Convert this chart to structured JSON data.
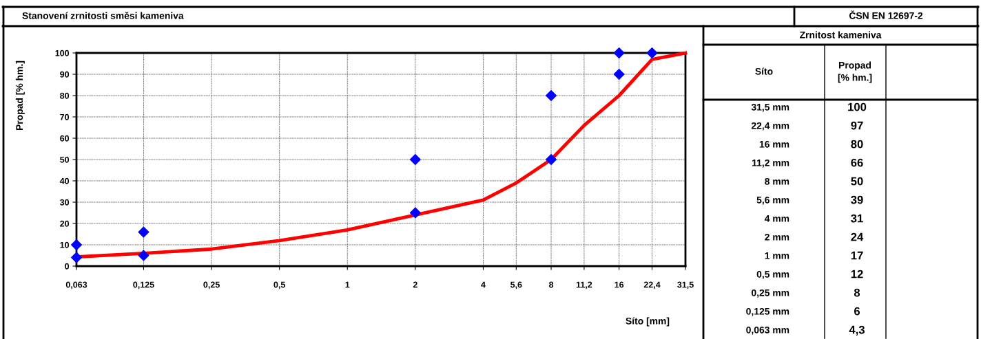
{
  "chart_data": {
    "type": "line",
    "title": "Stanovení zrnitosti směsi kameniva",
    "xlabel": "Síto [mm]",
    "ylabel": "Propad [% hm.]",
    "annotations": [
      "ČSN EN 12697-2",
      "Zrnitost kameniva",
      "Síto",
      "Propad [% hm.]",
      "31,5 mm",
      "22,4 mm",
      "16 mm",
      "11,2 mm",
      "8 mm",
      "5,6 mm",
      "4 mm",
      "2 mm",
      "1 mm",
      "0,5 mm",
      "0,25 mm",
      "0,125 mm",
      "0,063 mm",
      "100",
      "97",
      "80",
      "66",
      "50",
      "39",
      "31",
      "24",
      "17",
      "12",
      "8",
      "6",
      "4,3"
    ],
    "log": "x",
    "grid": true,
    "xlim": [
      0.063,
      31.5
    ],
    "ylim": [
      0,
      100
    ],
    "xticks": [
      {
        "value": 0.063,
        "label": "0,063"
      },
      {
        "value": 0.125,
        "label": "0,125"
      },
      {
        "value": 0.25,
        "label": "0,25"
      },
      {
        "value": 0.5,
        "label": "0,5"
      },
      1,
      2,
      4,
      {
        "value": 5.6,
        "label": "5,6"
      },
      8,
      {
        "value": 11.2,
        "label": "11,2"
      },
      16,
      {
        "value": 22.4,
        "label": "22,4"
      },
      {
        "value": 31.5,
        "label": "31,5"
      }
    ],
    "yticks": [
      0,
      10,
      20,
      30,
      40,
      50,
      60,
      70,
      80,
      90,
      100
    ],
    "series": [
      {
        "color": "#ff0000",
        "marker": "none",
        "line_style": "solid",
        "x": [
          31.5,
          22.4,
          16,
          11.2,
          8,
          5.6,
          4,
          2,
          1,
          0.5,
          0.25,
          0.125,
          0.063
        ],
        "values": [
          100,
          97,
          80,
          66,
          50,
          39,
          31,
          24,
          17,
          12,
          8,
          6,
          4.3
        ]
      },
      {
        "type": "scatter",
        "color": "#0000ff",
        "marker": "diamond",
        "x": [
          0.063,
          0.125,
          2,
          8,
          16,
          22.4
        ],
        "values": [
          4,
          5,
          25,
          50,
          90,
          100
        ]
      },
      {
        "type": "scatter",
        "color": "#0000ff",
        "marker": "diamond",
        "x": [
          0.063,
          0.125,
          2,
          8,
          16
        ],
        "values": [
          10,
          16,
          50,
          80,
          100
        ]
      }
    ]
  }
}
